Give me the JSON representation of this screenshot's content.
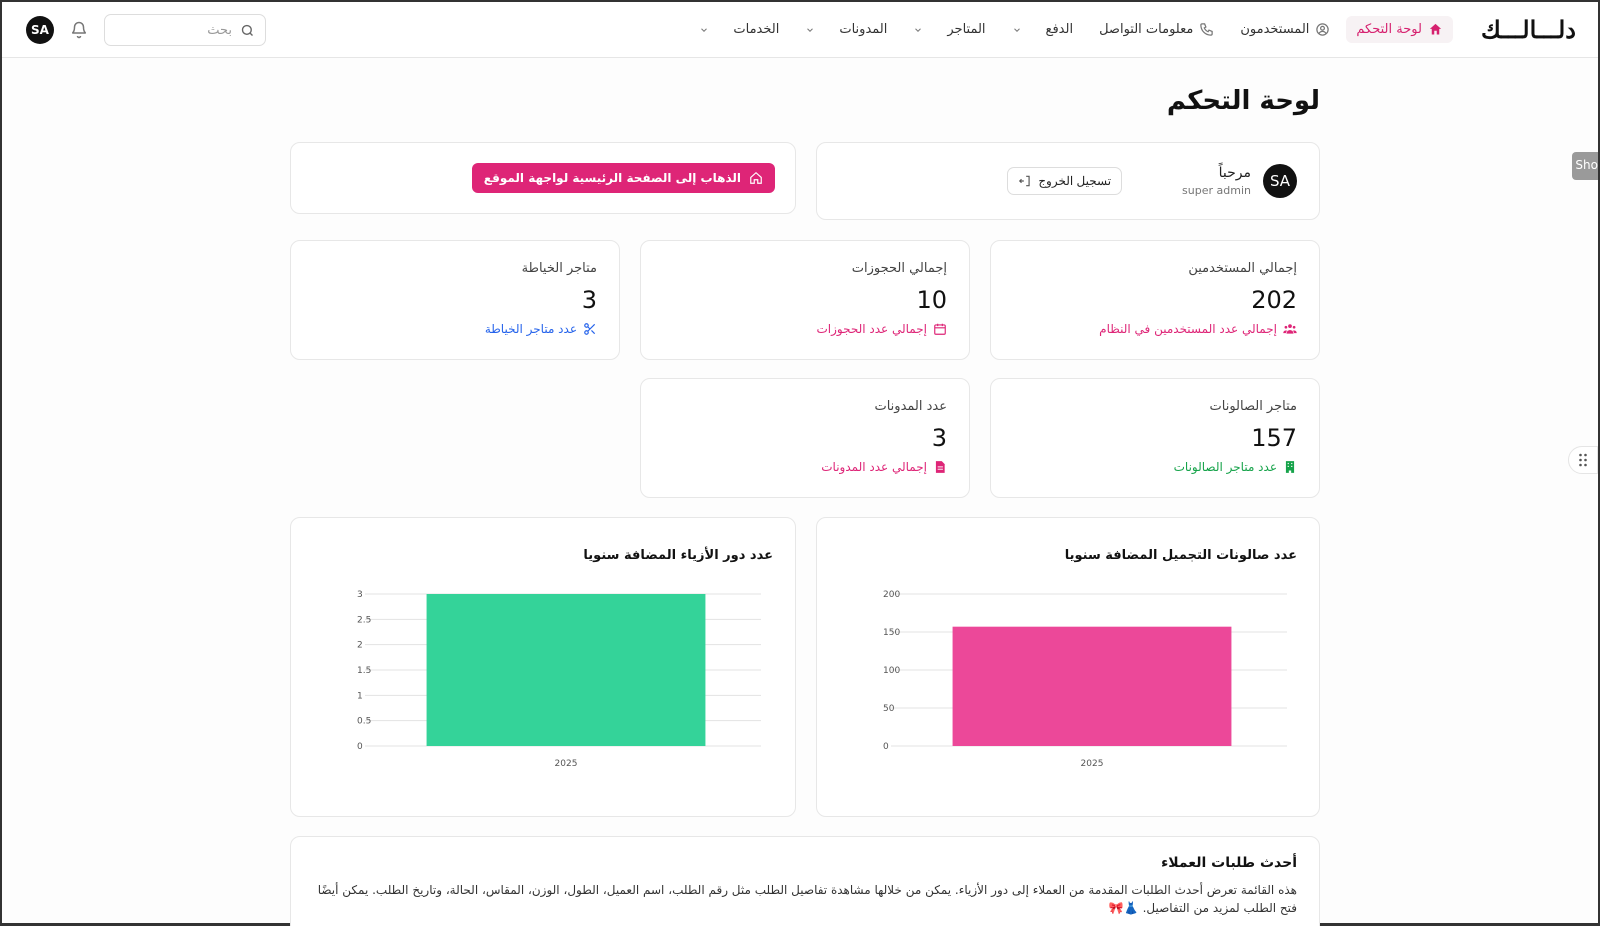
{
  "header": {
    "logo": "دلـــالـــك",
    "nav": [
      {
        "label": "لوحة التحكم",
        "icon": "home-icon",
        "active": true
      },
      {
        "label": "المستخدمون",
        "icon": "user-circle-icon"
      },
      {
        "label": "معلومات التواصل",
        "icon": "phone-icon"
      },
      {
        "label": "الدفع",
        "dropdown": true
      },
      {
        "label": "المتاجر",
        "dropdown": true
      },
      {
        "label": "المدونات",
        "dropdown": true
      },
      {
        "label": "الخدمات",
        "dropdown": true
      }
    ],
    "search_placeholder": "بحث",
    "avatar_initials": "SA"
  },
  "side": {
    "tab_label": "Sho"
  },
  "page": {
    "title": "لوحة التحكم"
  },
  "welcome": {
    "greeting": "مرحباً",
    "role": "super admin",
    "avatar": "SA",
    "logout_label": "تسجيل الخروج"
  },
  "goto": {
    "label": "الذهاب إلى الصفحة الرئيسية لواجهة الموقع"
  },
  "stats": [
    {
      "label": "إجمالي المستخدمين",
      "value": "202",
      "sub": "إجمالي عدد المستخدمين في النظام",
      "icon": "users-icon",
      "color": "#de2577"
    },
    {
      "label": "إجمالي الحجوزات",
      "value": "10",
      "sub": "إجمالي عدد الحجوزات",
      "icon": "calendar-icon",
      "color": "#de2577"
    },
    {
      "label": "متاجر الخياطة",
      "value": "3",
      "sub": "عدد متاجر الخياطة",
      "icon": "scissors-icon",
      "color": "#2563eb"
    },
    {
      "label": "متاجر الصالونات",
      "value": "157",
      "sub": "عدد متاجر الصالونات",
      "icon": "building-icon",
      "color": "#16a34a"
    },
    {
      "label": "عدد المدونات",
      "value": "3",
      "sub": "إجمالي عدد المدونات",
      "icon": "document-icon",
      "color": "#de2577"
    }
  ],
  "chart_data": [
    {
      "type": "bar",
      "title": "عدد صالونات التجميل المضافة سنويا",
      "categories": [
        "2025"
      ],
      "values": [
        157
      ],
      "ylim": [
        0,
        200
      ],
      "yticks": [
        0,
        50,
        100,
        150,
        200
      ],
      "color": "#ec4899",
      "grid": true
    },
    {
      "type": "bar",
      "title": "عدد دور الأزياء المضافة سنويا",
      "categories": [
        "2025"
      ],
      "values": [
        3
      ],
      "ylim": [
        0,
        3
      ],
      "yticks": [
        0,
        0.5,
        1,
        1.5,
        2,
        2.5,
        3
      ],
      "color": "#34d399",
      "grid": true
    }
  ],
  "orders": {
    "title": "أحدث طلبات العملاء",
    "description": "هذه القائمة تعرض أحدث الطلبات المقدمة من العملاء إلى دور الأزياء. يمكن من خلالها مشاهدة تفاصيل الطلب مثل رقم الطلب، اسم العميل، الطول، الوزن، المقاس، الحالة، وتاريخ الطلب. يمكن أيضًا فتح الطلب لمزيد من التفاصيل. 👗🎀"
  }
}
